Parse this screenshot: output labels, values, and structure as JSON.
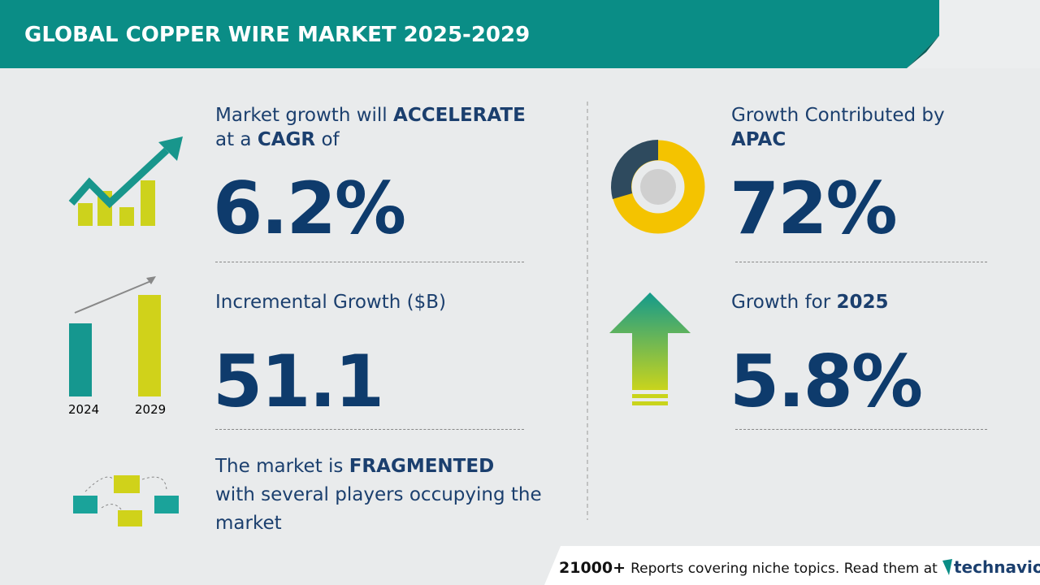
{
  "header": {
    "title": "GLOBAL COPPER WIRE MARKET 2025-2029"
  },
  "cagr": {
    "text1": "Market growth will",
    "emphasis1": "ACCELERATE",
    "text2": "at a",
    "emphasis2": "CAGR",
    "text3": "of",
    "value": "6.2%"
  },
  "incremental": {
    "label": "Incremental Growth ($B)",
    "value": "51.1",
    "year_start": "2024",
    "year_end": "2029"
  },
  "structure": {
    "text1": "The market is",
    "emphasis": "FRAGMENTED",
    "text2": "with several players occupying the market"
  },
  "region": {
    "label": "Growth Contributed by",
    "emphasis": "APAC",
    "value": "72%"
  },
  "yoy": {
    "label": "Growth for",
    "emphasis": "2025",
    "value": "5.8%"
  },
  "footer": {
    "count": "21000+",
    "text": "Reports covering niche topics. Read them at",
    "brand": "technavio"
  }
}
